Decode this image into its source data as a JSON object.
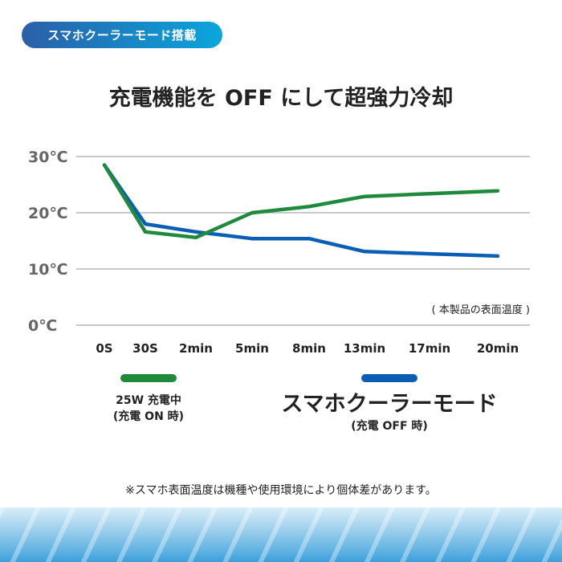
{
  "badge": "スマホクーラーモード搭載",
  "title": "充電機能を OFF にして超強力冷却",
  "chart_data": {
    "type": "line",
    "title": "充電機能を OFF にして超強力冷却",
    "categories": [
      "0S",
      "30S",
      "2min",
      "5min",
      "8min",
      "13min",
      "17min",
      "20min"
    ],
    "y_ticks": [
      "0℃",
      "10℃",
      "20℃",
      "30℃"
    ],
    "ylim": [
      0,
      30
    ],
    "annotation": "( 本製品の表面温度 )",
    "series": [
      {
        "name": "25W 充電中 (充電 ON 時)",
        "color": "#1f8a3c",
        "values": [
          28.5,
          16.6,
          15.6,
          20.0,
          21.1,
          22.9,
          23.4,
          23.9
        ]
      },
      {
        "name": "スマホクーラーモード (充電 OFF 時)",
        "color": "#0a5fb4",
        "values": [
          28.5,
          18.0,
          16.6,
          15.4,
          15.4,
          13.1,
          12.7,
          12.3
        ]
      }
    ]
  },
  "legend": {
    "green_line1": "25W 充電中",
    "green_line2": "(充電 ON 時)",
    "blue_line1": "スマホクーラーモード",
    "blue_line2": "(充電 OFF 時)"
  },
  "note": "※スマホ表面温度は機種や使用環境により個体差があります。"
}
